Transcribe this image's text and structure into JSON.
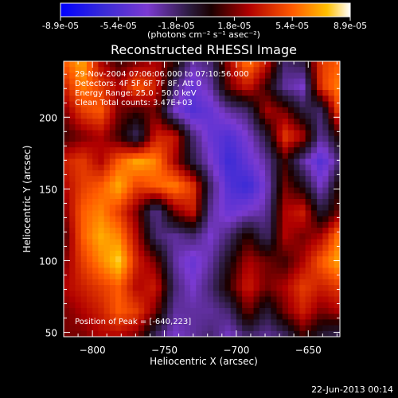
{
  "colorbar": {
    "tick_labels": [
      "-8.9e-05",
      "-5.4e-05",
      "-1.8e-05",
      "1.8e-05",
      "5.4e-05",
      "8.9e-05"
    ],
    "unit_label": "(photons cm⁻² s⁻¹ asec⁻²)",
    "range": [
      -8.9e-05,
      8.9e-05
    ]
  },
  "footer_timestamp": "22-Jun-2013 00:14",
  "chart_data": {
    "type": "heatmap",
    "title": "Reconstructed RHESSI Image",
    "xlabel": "Heliocentric X (arcsec)",
    "ylabel": "Heliocentric Y (arcsec)",
    "xlim": [
      -820,
      -628
    ],
    "ylim": [
      47,
      239
    ],
    "x_ticks": [
      -800,
      -750,
      -700,
      -650
    ],
    "y_ticks": [
      50,
      100,
      150,
      200
    ],
    "x_tick_labels": [
      "-800",
      "-750",
      "-700",
      "-650"
    ],
    "y_tick_labels": [
      "50",
      "100",
      "150",
      "200"
    ],
    "annotations": {
      "time": "29-Nov-2004 07:06:06.000 to 07:10:56.000",
      "detectors": "Detectors: 4F 5F 6F 7F 8F, Att 0",
      "energy": "Energy Range: 25.0 - 50.0 keV",
      "method": "Clean    Total counts: 3.47E+03",
      "peak": "Position of Peak = [-640,223]"
    },
    "peak": [
      -640,
      223
    ],
    "image": {
      "x_range": [
        -820,
        -628
      ],
      "y_range": [
        47,
        239
      ],
      "grid": [
        [
          0.6,
          0.8,
          0.3,
          0.1,
          0.2,
          0.3,
          0.1,
          -0.3,
          -0.2,
          0.3,
          0.7,
          0.4,
          -0.2,
          -0.1,
          0.5,
          0.6
        ],
        [
          0.4,
          0.7,
          0.5,
          0.3,
          0.6,
          0.4,
          -0.2,
          -0.5,
          -0.3,
          0.2,
          0.4,
          0.1,
          -0.3,
          -0.4,
          0.5,
          0.7
        ],
        [
          0.2,
          0.5,
          0.6,
          0.2,
          0.1,
          0.2,
          -0.4,
          -0.6,
          -0.5,
          -0.3,
          -0.2,
          0.3,
          0.2,
          -0.1,
          -0.2,
          0.6
        ],
        [
          0.1,
          0.2,
          0.3,
          0.1,
          -0.2,
          0.4,
          0.4,
          -0.2,
          -0.5,
          -0.6,
          -0.4,
          -0.1,
          0.5,
          0.3,
          -0.3,
          0.1
        ],
        [
          0.4,
          0.5,
          0.3,
          0.6,
          0.8,
          0.7,
          0.3,
          -0.1,
          -0.4,
          -0.7,
          -0.5,
          -0.3,
          0.1,
          -0.3,
          -0.6,
          -0.2
        ],
        [
          0.3,
          0.5,
          0.6,
          0.8,
          0.5,
          0.6,
          0.7,
          0.5,
          -0.2,
          -0.6,
          -0.7,
          -0.4,
          0.2,
          0.0,
          -0.4,
          0.1
        ],
        [
          0.2,
          0.6,
          0.7,
          0.5,
          0.2,
          -0.3,
          0.2,
          0.4,
          -0.3,
          -0.5,
          -0.4,
          -0.3,
          0.3,
          0.4,
          -0.1,
          0.2
        ],
        [
          0.1,
          0.6,
          0.8,
          0.7,
          0.3,
          -0.2,
          -0.3,
          -0.2,
          -0.4,
          -0.2,
          0.1,
          -0.2,
          0.3,
          0.2,
          0.3,
          0.7
        ],
        [
          0.2,
          0.5,
          0.7,
          0.9,
          0.4,
          0.2,
          -0.3,
          -0.5,
          -0.3,
          0.0,
          0.3,
          0.2,
          0.1,
          0.3,
          0.6,
          0.8
        ],
        [
          0.3,
          0.4,
          0.5,
          0.6,
          0.3,
          0.4,
          -0.2,
          -0.4,
          -0.2,
          0.1,
          0.4,
          0.2,
          0.3,
          0.5,
          0.4,
          0.5
        ],
        [
          0.2,
          0.3,
          0.4,
          0.6,
          0.5,
          0.2,
          -0.3,
          -0.3,
          -0.3,
          -0.2,
          0.2,
          -0.1,
          0.2,
          0.4,
          0.2,
          0.3
        ],
        [
          0.2,
          0.2,
          0.3,
          0.3,
          0.2,
          -0.2,
          -0.4,
          -0.3,
          -0.2,
          -0.4,
          -0.2,
          -0.3,
          -0.2,
          0.1,
          -0.1,
          -0.2
        ]
      ]
    }
  }
}
